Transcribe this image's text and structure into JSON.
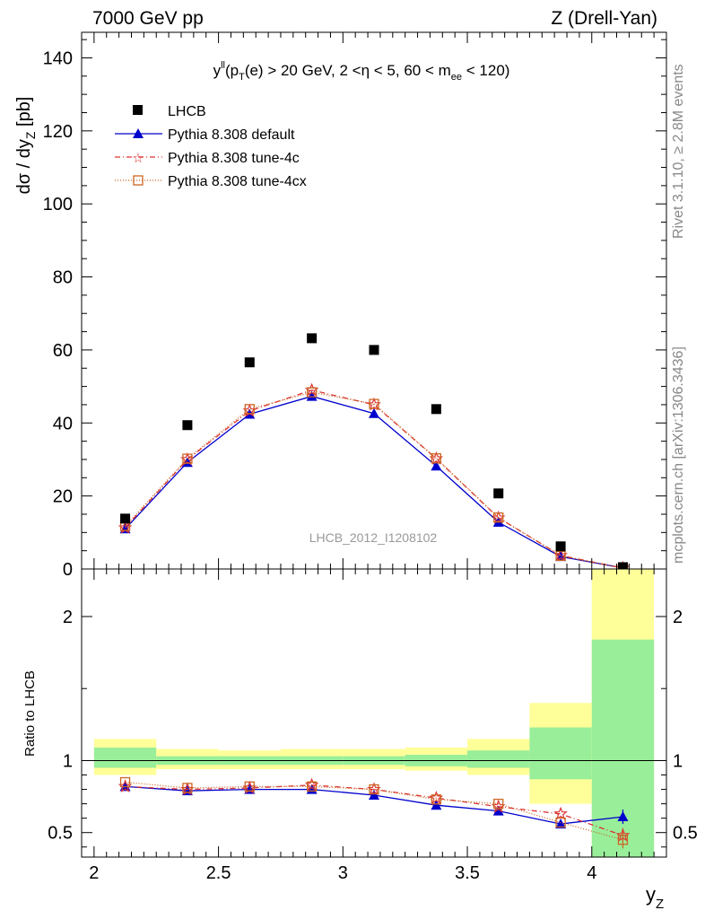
{
  "header": {
    "left": "7000 GeV pp",
    "right": "Z (Drell-Yan)"
  },
  "side": {
    "rivet": "Rivet 3.1.10, ≥ 2.8M events",
    "mcplots": "mcplots.cern.ch [arXiv:1306.3436]"
  },
  "colors": {
    "data": "#000000",
    "default": "#0000cc",
    "tune4c": "#dd3333",
    "tune4cx": "#cc6622",
    "band_green": "#99ee99",
    "band_yellow": "#ffff99",
    "ref_line": "#000000"
  },
  "chart_data": [
    {
      "type": "scatter",
      "title": "y^ll (p_T(e) > 20 GeV, 2 <η < 5, 60 < m_ee < 120)",
      "title_parts": {
        "y": "y",
        "ll": "ll",
        "p1": "(p",
        "t": "T",
        "p2": "(e) > 20 GeV, 2 <η < 5, 60 < m",
        "ee": "ee",
        "p3": " < 120)"
      },
      "ylabel": "dσ / dy",
      "ylabel_sub": "Z",
      "ylabel_unit": " [pb]",
      "watermark": "LHCB_2012_I1208102",
      "xlim": [
        1.95,
        4.3
      ],
      "ylim": [
        0,
        147
      ],
      "y_ticks": [
        0,
        20,
        40,
        60,
        80,
        100,
        120,
        140
      ],
      "y_tick_labels": [
        "0",
        "20",
        "40",
        "60",
        "80",
        "100",
        "120",
        "140"
      ],
      "x": [
        2.125,
        2.375,
        2.625,
        2.875,
        3.125,
        3.375,
        3.625,
        3.875,
        4.125
      ],
      "legend_position": "top-left",
      "series": [
        {
          "name": "LHCB",
          "key": "data",
          "values": [
            13.8,
            39.4,
            56.6,
            63.2,
            60.0,
            43.8,
            20.7,
            6.2,
            0.5
          ]
        },
        {
          "name": "Pythia 8.308 default",
          "key": "default",
          "values": [
            11.0,
            29.2,
            42.4,
            47.3,
            42.6,
            28.2,
            12.8,
            3.4,
            0.3
          ]
        },
        {
          "name": "Pythia 8.308 tune-4c",
          "key": "tune4c",
          "values": [
            11.3,
            30.0,
            43.3,
            49.0,
            45.0,
            30.2,
            14.0,
            3.7,
            0.25
          ]
        },
        {
          "name": "Pythia 8.308 tune-4cx",
          "key": "tune4cx",
          "values": [
            11.8,
            30.2,
            43.8,
            48.4,
            45.2,
            30.3,
            14.1,
            3.6,
            0.22
          ]
        }
      ]
    },
    {
      "type": "scatter",
      "ylabel": "Ratio to LHCB",
      "xlabel": "y",
      "xlabel_sub": "Z",
      "xlim": [
        1.95,
        4.3
      ],
      "ylim": [
        0.33,
        2.33
      ],
      "y_ticks": [
        0.5,
        1,
        2
      ],
      "y_tick_labels": [
        "0.5",
        "1",
        "2"
      ],
      "x_ticks": [
        2,
        2.5,
        3,
        3.5,
        4
      ],
      "x_tick_labels": [
        "2",
        "2.5",
        "3",
        "3.5",
        "4"
      ],
      "x": [
        2.125,
        2.375,
        2.625,
        2.875,
        3.125,
        3.375,
        3.625,
        3.875,
        4.125
      ],
      "bands": [
        {
          "x0": 2.0,
          "x1": 2.25,
          "green": [
            0.95,
            1.09
          ],
          "yellow": [
            0.9,
            1.15
          ]
        },
        {
          "x0": 2.25,
          "x1": 2.5,
          "green": [
            0.97,
            1.03
          ],
          "yellow": [
            0.94,
            1.08
          ]
        },
        {
          "x0": 2.5,
          "x1": 2.75,
          "green": [
            0.97,
            1.03
          ],
          "yellow": [
            0.94,
            1.07
          ]
        },
        {
          "x0": 2.75,
          "x1": 3.0,
          "green": [
            0.97,
            1.03
          ],
          "yellow": [
            0.94,
            1.08
          ]
        },
        {
          "x0": 3.0,
          "x1": 3.25,
          "green": [
            0.97,
            1.03
          ],
          "yellow": [
            0.94,
            1.08
          ]
        },
        {
          "x0": 3.25,
          "x1": 3.5,
          "green": [
            0.96,
            1.04
          ],
          "yellow": [
            0.93,
            1.09
          ]
        },
        {
          "x0": 3.5,
          "x1": 3.75,
          "green": [
            0.95,
            1.07
          ],
          "yellow": [
            0.9,
            1.15
          ]
        },
        {
          "x0": 3.75,
          "x1": 4.0,
          "green": [
            0.87,
            1.23
          ],
          "yellow": [
            0.7,
            1.4
          ]
        },
        {
          "x0": 4.0,
          "x1": 4.25,
          "green": [
            0.33,
            1.84
          ],
          "yellow": [
            0.33,
            2.33
          ]
        }
      ],
      "series": [
        {
          "name": "Pythia 8.308 default",
          "key": "default",
          "values": [
            0.82,
            0.79,
            0.8,
            0.8,
            0.76,
            0.69,
            0.65,
            0.56,
            0.61
          ],
          "errors": [
            0,
            0,
            0,
            0,
            0,
            0,
            0,
            0,
            0.05
          ]
        },
        {
          "name": "Pythia 8.308 tune-4c",
          "key": "tune4c",
          "values": [
            0.82,
            0.8,
            0.81,
            0.83,
            0.8,
            0.74,
            0.68,
            0.63,
            0.48
          ],
          "errors": [
            0,
            0,
            0,
            0,
            0,
            0,
            0,
            0,
            0.05
          ]
        },
        {
          "name": "Pythia 8.308 tune-4cx",
          "key": "tune4cx",
          "values": [
            0.85,
            0.81,
            0.82,
            0.82,
            0.8,
            0.73,
            0.7,
            0.57,
            0.45
          ],
          "errors": [
            0,
            0,
            0,
            0,
            0,
            0,
            0,
            0,
            0.06
          ]
        }
      ]
    }
  ]
}
